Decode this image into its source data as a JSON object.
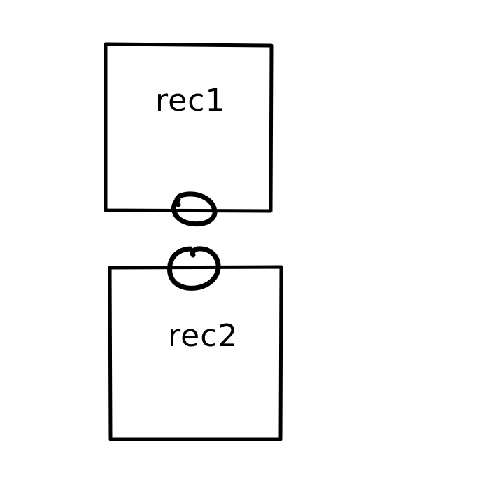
{
  "diagram": {
    "nodes": [
      {
        "id": "rec1",
        "label": "rec1"
      },
      {
        "id": "rec2",
        "label": "rec2"
      }
    ],
    "connectors": [
      {
        "attached_to": "rec1",
        "side": "bottom",
        "shape": "circle"
      },
      {
        "attached_to": "rec2",
        "side": "top",
        "shape": "circle"
      }
    ],
    "colors": {
      "stroke": "#000000",
      "background": "#ffffff"
    }
  }
}
